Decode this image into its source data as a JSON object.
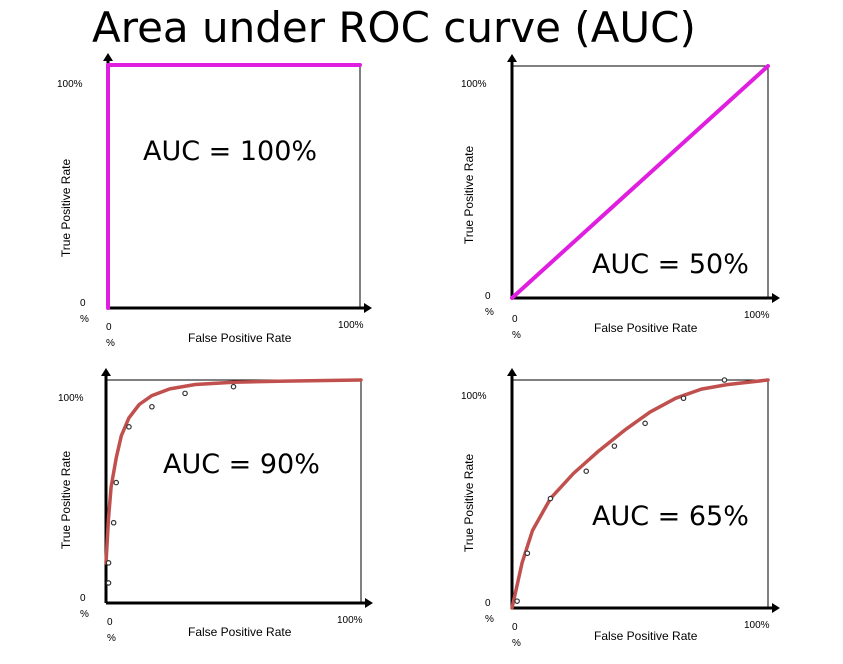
{
  "title": "Area under ROC curve (AUC)",
  "colors": {
    "ideal_line": "#e01ee0",
    "fit_curve": "#c0504d",
    "points": "#333333",
    "axis": "#000000"
  },
  "chart_data": [
    {
      "type": "line",
      "annotation": "AUC = 100%",
      "xlabel": "False Positive Rate",
      "ylabel": "True Positive Rate",
      "xticks": [
        "0\n%",
        "100%"
      ],
      "yticks": [
        "0\n%",
        "100%"
      ],
      "xlim": [
        0,
        100
      ],
      "ylim": [
        0,
        100
      ],
      "series": [
        {
          "color": "#e01ee0",
          "x": [
            0,
            0,
            100
          ],
          "y": [
            0,
            100,
            100
          ]
        }
      ],
      "points": {
        "x": [],
        "y": []
      }
    },
    {
      "type": "line",
      "annotation": "AUC = 50%",
      "xlabel": "False Positive Rate",
      "ylabel": "True Positive Rate",
      "xticks": [
        "0\n%",
        "100%"
      ],
      "yticks": [
        "0\n%",
        "100%"
      ],
      "xlim": [
        0,
        100
      ],
      "ylim": [
        0,
        100
      ],
      "series": [
        {
          "color": "#e01ee0",
          "x": [
            0,
            100
          ],
          "y": [
            0,
            100
          ]
        }
      ],
      "points": {
        "x": [],
        "y": []
      }
    },
    {
      "type": "line",
      "annotation": "AUC = 90%",
      "xlabel": "False Positive Rate",
      "ylabel": "True Positive Rate",
      "xticks": [
        "0\n%",
        "100%"
      ],
      "yticks": [
        "0\n%",
        "100%"
      ],
      "xlim": [
        0,
        100
      ],
      "ylim": [
        0,
        100
      ],
      "series": [
        {
          "color": "#c0504d",
          "x": [
            0,
            1,
            2,
            4,
            6,
            9,
            13,
            18,
            25,
            35,
            50,
            70,
            100
          ],
          "y": [
            18,
            38,
            52,
            65,
            75,
            83,
            89,
            93,
            96,
            98,
            99,
            99.5,
            100
          ]
        }
      ],
      "points": {
        "x": [
          1,
          1,
          3,
          4,
          9,
          18,
          31,
          50
        ],
        "y": [
          9,
          18,
          36,
          54,
          79,
          88,
          94,
          97
        ]
      }
    },
    {
      "type": "line",
      "annotation": "AUC = 65%",
      "xlabel": "False Positive Rate",
      "ylabel": "True Positive Rate",
      "xticks": [
        "0\n%",
        "100%"
      ],
      "yticks": [
        "0\n%",
        "100%"
      ],
      "xlim": [
        0,
        100
      ],
      "ylim": [
        0,
        100
      ],
      "series": [
        {
          "color": "#c0504d",
          "x": [
            0,
            4,
            8,
            15,
            24,
            34,
            44,
            54,
            64,
            74,
            84,
            100
          ],
          "y": [
            0,
            20,
            34,
            48,
            59,
            69,
            78,
            86,
            92,
            96,
            98,
            100
          ]
        }
      ],
      "points": {
        "x": [
          2,
          6,
          15,
          29,
          40,
          52,
          67,
          83
        ],
        "y": [
          3,
          24,
          48,
          60,
          71,
          81,
          92,
          100
        ]
      }
    }
  ]
}
